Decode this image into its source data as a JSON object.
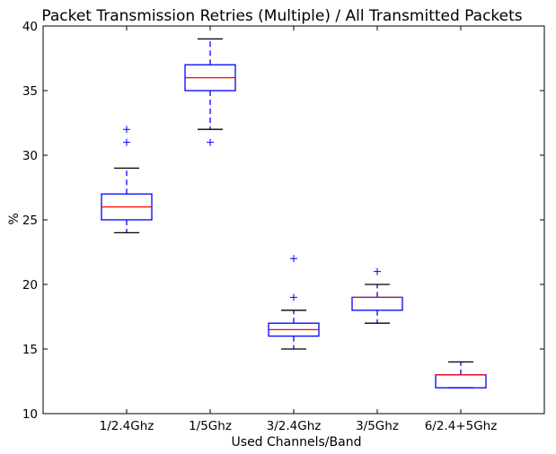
{
  "chart_data": {
    "type": "boxplot",
    "title": "Packet Transmission Retries (Multiple) / All Transmitted Packets",
    "xlabel": "Used Channels/Band",
    "ylabel": "%",
    "ylim": [
      10,
      40
    ],
    "yticks": [
      10,
      15,
      20,
      25,
      30,
      35,
      40
    ],
    "grid": false,
    "categories": [
      "1/2.4Ghz",
      "1/5Ghz",
      "3/2.4Ghz",
      "3/5Ghz",
      "6/2.4+5Ghz"
    ],
    "boxes": [
      {
        "whisker_low": 24,
        "q1": 25,
        "median": 26,
        "q3": 27,
        "whisker_high": 29,
        "outliers": [
          31,
          32
        ]
      },
      {
        "whisker_low": 32,
        "q1": 35,
        "median": 36,
        "q3": 37,
        "whisker_high": 39,
        "outliers": [
          31
        ]
      },
      {
        "whisker_low": 15,
        "q1": 16,
        "median": 16.5,
        "q3": 17,
        "whisker_high": 18,
        "outliers": [
          19,
          22
        ]
      },
      {
        "whisker_low": 17,
        "q1": 18,
        "median": 19,
        "q3": 19,
        "whisker_high": 20,
        "outliers": [
          21
        ]
      },
      {
        "whisker_low": 12,
        "q1": 12,
        "median": 13,
        "q3": 13,
        "whisker_high": 14,
        "outliers": []
      }
    ],
    "colors": {
      "box": "#0000ff",
      "median": "#ff0000",
      "whisker_cap": "#000000",
      "outlier": "#0000ff"
    }
  }
}
